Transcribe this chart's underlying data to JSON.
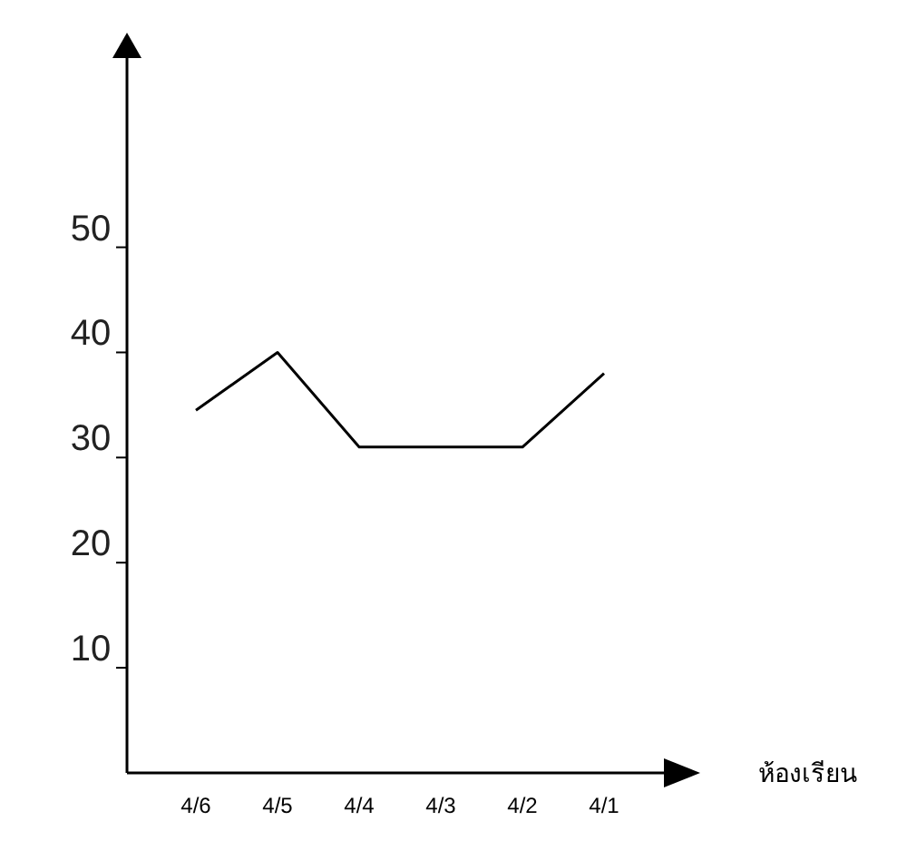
{
  "chart_data": {
    "type": "line",
    "xlabel": "ห้องเรียน",
    "categories": [
      "4/6",
      "4/5",
      "4/4",
      "4/3",
      "4/2",
      "4/1"
    ],
    "series": [
      {
        "color": "#000000",
        "values": [
          34.5,
          40,
          31,
          31,
          31,
          38
        ]
      }
    ],
    "ylim": [
      0,
      68
    ],
    "yticks": [
      10,
      20,
      30,
      40,
      50
    ],
    "marker": "none",
    "line_style": "solid"
  }
}
